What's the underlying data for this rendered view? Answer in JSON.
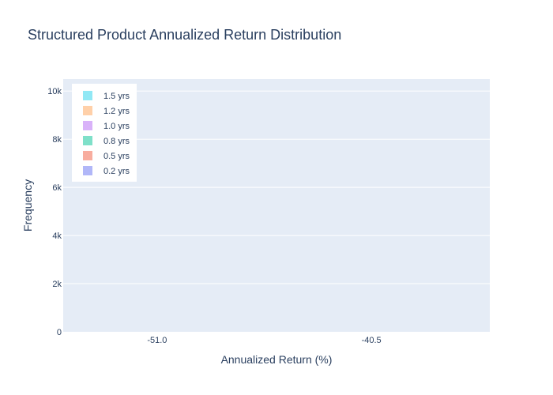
{
  "chart_data": {
    "type": "bar",
    "title": "Structured Product Annualized Return Distribution",
    "xlabel": "Annualized Return (%)",
    "ylabel": "Frequency",
    "x_ticks": [
      -51.0,
      -40.5
    ],
    "x_tick_labels": [
      "-51.0",
      "-40.5"
    ],
    "xlim": [
      -55.6,
      -34.7
    ],
    "ylim": [
      0,
      10500
    ],
    "y_ticks": [
      0,
      2000,
      4000,
      6000,
      8000,
      10000
    ],
    "y_tick_labels": [
      "0",
      "2k",
      "4k",
      "6k",
      "8k",
      "10k"
    ],
    "grid": true,
    "legend_position": "top-left",
    "series": [
      {
        "name": "1.5 yrs",
        "color": "#91e8f5"
      },
      {
        "name": "1.2 yrs",
        "color": "#ffd0a9"
      },
      {
        "name": "1.0 yrs",
        "color": "#d9b2f9"
      },
      {
        "name": "0.8 yrs",
        "color": "#7fe0c9"
      },
      {
        "name": "0.5 yrs",
        "color": "#f8ad9f"
      },
      {
        "name": "0.2 yrs",
        "color": "#b1b7f8"
      }
    ],
    "colors": {
      "plot_bg": "#e5ecf6",
      "grid": "#ffffff",
      "text": "#2a3f5f",
      "legend_bg": "#ffffff"
    }
  }
}
